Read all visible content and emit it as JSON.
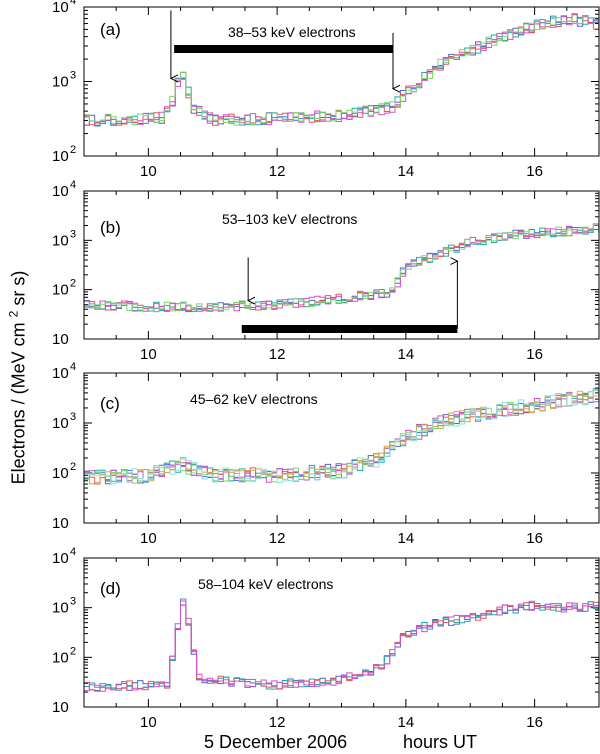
{
  "figure": {
    "ylabel": "Electrons / (MeV cm",
    "ylabel_sup": "2",
    "ylabel_tail": " sr s)",
    "xlabel_date": "5 December 2006",
    "xlabel_units": "hours  UT"
  },
  "colors": {
    "series": [
      "#4f64d8",
      "#1fa8a8",
      "#e05a5a",
      "#d04fd0",
      "#7ad86a",
      "#cfa84a",
      "#8ce0e0"
    ],
    "bar": "#000000"
  },
  "chart_data": [
    {
      "id": "a",
      "type": "line",
      "panel_label": "(a)",
      "title": "38–53 keV electrons",
      "xlim": [
        9,
        17
      ],
      "ylim_log10": [
        2,
        4
      ],
      "xticks": [
        10,
        12,
        14,
        16
      ],
      "yticks": [
        {
          "value": 100,
          "label": "10",
          "sup": "2"
        },
        {
          "value": 1000,
          "label": "10",
          "sup": "3"
        },
        {
          "value": 10000,
          "label": "10",
          "sup": "4"
        }
      ],
      "bar_interval_hours": [
        10.4,
        13.8
      ],
      "arrows": [
        {
          "x": 10.35,
          "direction": "down",
          "y_from": 9000,
          "y_to": 1100
        },
        {
          "x": 13.8,
          "direction": "down",
          "y_from": 4500,
          "y_to": 800
        }
      ],
      "profile_hours": [
        9.0,
        10.2,
        10.4,
        10.5,
        10.7,
        11.0,
        12.0,
        13.0,
        13.8,
        14.0,
        14.5,
        15.0,
        15.5,
        16.0,
        16.5,
        17.0
      ],
      "profile_values": [
        300,
        320,
        600,
        1500,
        450,
        300,
        320,
        350,
        450,
        700,
        1600,
        2600,
        4000,
        5500,
        7000,
        6000
      ],
      "spread_decades": 0.08,
      "num_series": 5
    },
    {
      "id": "b",
      "type": "line",
      "panel_label": "(b)",
      "title": "53–103 keV electrons",
      "xlim": [
        9,
        17
      ],
      "ylim_log10": [
        1,
        4
      ],
      "xticks": [
        10,
        12,
        14,
        16
      ],
      "yticks": [
        {
          "value": 10,
          "label": "10",
          "sup": ""
        },
        {
          "value": 100,
          "label": "10",
          "sup": "2"
        },
        {
          "value": 1000,
          "label": "10",
          "sup": "3"
        },
        {
          "value": 10000,
          "label": "10",
          "sup": "4"
        }
      ],
      "bar_interval_hours": [
        11.45,
        14.8
      ],
      "arrows": [
        {
          "x": 11.55,
          "direction": "down",
          "y_from": 450,
          "y_to": 60
        },
        {
          "x": 14.8,
          "direction": "up",
          "y_from": 16,
          "y_to": 380
        }
      ],
      "profile_hours": [
        9.0,
        10.0,
        11.0,
        12.0,
        13.0,
        13.8,
        14.0,
        14.5,
        15.0,
        15.5,
        16.0,
        16.5,
        17.0
      ],
      "profile_values": [
        50,
        45,
        45,
        50,
        65,
        90,
        300,
        500,
        900,
        1200,
        1400,
        1500,
        1800
      ],
      "spread_decades": 0.1,
      "num_series": 5
    },
    {
      "id": "c",
      "type": "line",
      "panel_label": "(c)",
      "title": "45–62 keV electrons",
      "xlim": [
        9,
        17
      ],
      "ylim_log10": [
        1,
        4
      ],
      "xticks": [
        10,
        12,
        14,
        16
      ],
      "yticks": [
        {
          "value": 10,
          "label": "10",
          "sup": ""
        },
        {
          "value": 100,
          "label": "10",
          "sup": "2"
        },
        {
          "value": 1000,
          "label": "10",
          "sup": "3"
        },
        {
          "value": 10000,
          "label": "10",
          "sup": "4"
        }
      ],
      "bar_interval_hours": [],
      "arrows": [],
      "profile_hours": [
        9.0,
        10.0,
        10.5,
        11.0,
        12.0,
        13.0,
        13.5,
        14.0,
        14.5,
        15.0,
        15.5,
        16.0,
        16.5,
        17.0
      ],
      "profile_values": [
        80,
        90,
        150,
        90,
        90,
        110,
        170,
        500,
        1000,
        1400,
        1800,
        2300,
        2900,
        3500
      ],
      "spread_decades": 0.15,
      "num_series": 7
    },
    {
      "id": "d",
      "type": "line",
      "panel_label": "(d)",
      "title": "58–104 keV electrons",
      "xlim": [
        9,
        17
      ],
      "ylim_log10": [
        1,
        4
      ],
      "xticks": [
        10,
        12,
        14,
        16
      ],
      "yticks": [
        {
          "value": 10,
          "label": "10",
          "sup": ""
        },
        {
          "value": 100,
          "label": "10",
          "sup": "2"
        },
        {
          "value": 1000,
          "label": "10",
          "sup": "3"
        },
        {
          "value": 10000,
          "label": "10",
          "sup": "4"
        }
      ],
      "bar_interval_hours": [],
      "arrows": [],
      "profile_hours": [
        9.0,
        10.0,
        10.3,
        10.45,
        10.5,
        10.6,
        10.8,
        12.0,
        13.0,
        13.6,
        14.0,
        14.5,
        15.0,
        15.5,
        16.0,
        16.5,
        17.0
      ],
      "profile_values": [
        25,
        28,
        30,
        300,
        2200,
        700,
        35,
        28,
        35,
        60,
        300,
        500,
        600,
        900,
        1100,
        1000,
        1100
      ],
      "spread_decades": 0.1,
      "num_series": 4
    }
  ]
}
